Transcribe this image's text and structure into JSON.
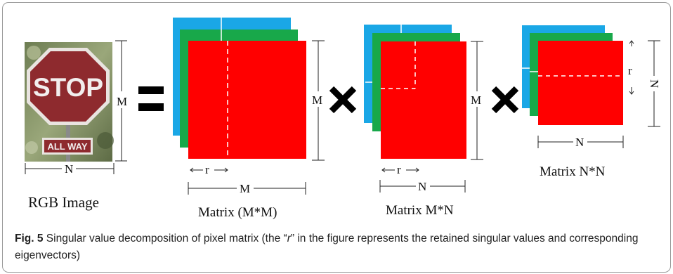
{
  "diagram": {
    "stop_sign": {
      "main_text": "STOP",
      "sub_text": "ALL WAY"
    },
    "labels": {
      "image_width": "N",
      "image_height": "M",
      "rgb_image": "RGB Image",
      "u_height": "M",
      "u_r": "r",
      "u_width": "M",
      "u_title": "Matrix (M*M)",
      "s_height": "M",
      "s_r": "r",
      "s_width": "N",
      "s_title": "Matrix M*N",
      "v_r": "r",
      "v_height": "N",
      "v_width": "N",
      "v_title": "Matrix N*N"
    },
    "colors": {
      "red": "#ff0000",
      "green": "#18a84a",
      "blue": "#1aa7e6",
      "operators": "#000000",
      "sign_red": "#8e2a2e"
    },
    "operators": [
      "equals-icon",
      "times-icon",
      "times-icon"
    ]
  },
  "caption": {
    "label": "Fig. 5",
    "text": " Singular value decomposition of pixel matrix (the “",
    "r": "r",
    "text_end": "” in the figure represents the retained singular values and corresponding eigenvectors)"
  }
}
